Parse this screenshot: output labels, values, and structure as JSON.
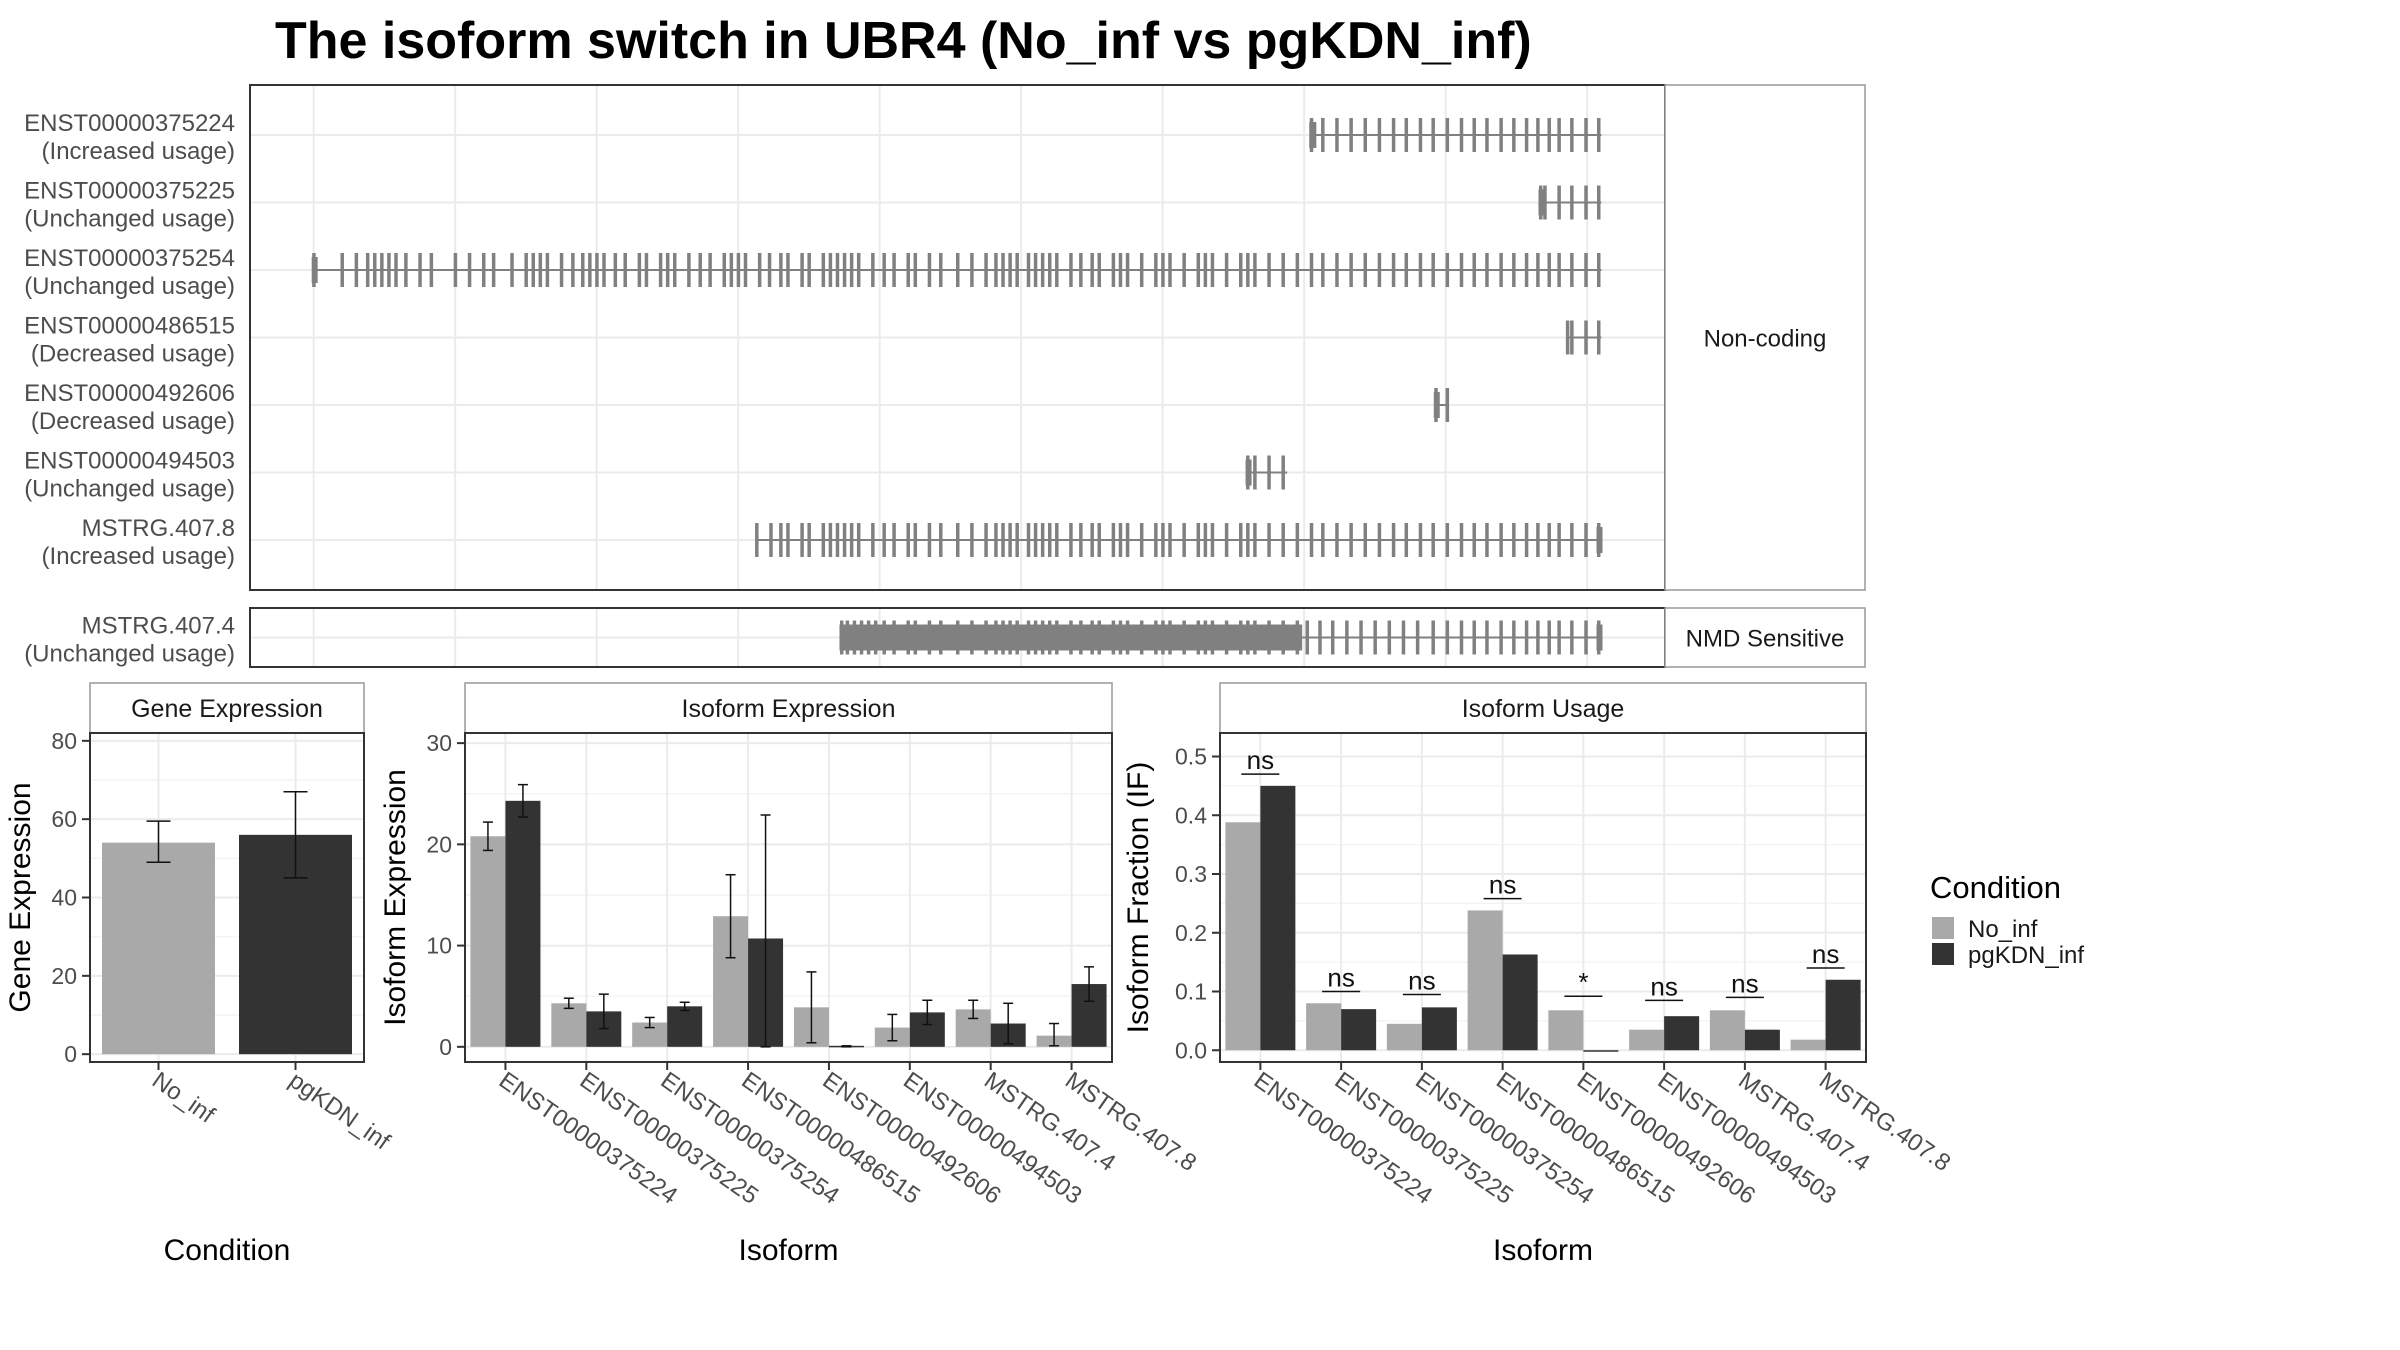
{
  "title": "The isoform switch in UBR4 (No_inf vs pgKDN_inf)",
  "colors": {
    "no_inf": "#a9a9a9",
    "pgkdn_inf": "#333333",
    "transcript": "#808080",
    "panel_border": "#333333",
    "strip_fill": "#ffffff",
    "grid": "#ebebeb"
  },
  "transcript_panel": {
    "groups": [
      {
        "label": "Non-coding",
        "transcripts": [
          {
            "id": "ENST00000375224",
            "usage": "(Increased usage)",
            "span": [
              0.75,
              0.955
            ],
            "exons": [
              0.75,
              0.758,
              0.768,
              0.778,
              0.788,
              0.798,
              0.808,
              0.817,
              0.827,
              0.836,
              0.846,
              0.856,
              0.865,
              0.874,
              0.884,
              0.893,
              0.902,
              0.91,
              0.918,
              0.925,
              0.934,
              0.944,
              0.953
            ],
            "thick": [
              0.75,
              0.755
            ]
          },
          {
            "id": "ENST00000375225",
            "usage": "(Unchanged usage)",
            "span": [
              0.912,
              0.955
            ],
            "exons": [
              0.912,
              0.915,
              0.925,
              0.934,
              0.944,
              0.953
            ],
            "thick": [
              0.912,
              0.916
            ]
          },
          {
            "id": "ENST00000375254",
            "usage": "(Unchanged usage)",
            "span": [
              0.045,
              0.955
            ],
            "exons": [
              0.045,
              0.065,
              0.075,
              0.083,
              0.088,
              0.093,
              0.098,
              0.103,
              0.11,
              0.12,
              0.128,
              0.145,
              0.155,
              0.165,
              0.172,
              0.185,
              0.195,
              0.2,
              0.205,
              0.21,
              0.22,
              0.228,
              0.235,
              0.24,
              0.245,
              0.25,
              0.258,
              0.265,
              0.275,
              0.28,
              0.29,
              0.295,
              0.3,
              0.31,
              0.318,
              0.325,
              0.335,
              0.34,
              0.345,
              0.35,
              0.36,
              0.367,
              0.375,
              0.38,
              0.39,
              0.395,
              0.405,
              0.41,
              0.415,
              0.42,
              0.425,
              0.43,
              0.44,
              0.448,
              0.455,
              0.465,
              0.47,
              0.48,
              0.488,
              0.5,
              0.51,
              0.52,
              0.527,
              0.532,
              0.537,
              0.542,
              0.55,
              0.555,
              0.56,
              0.565,
              0.57,
              0.58,
              0.587,
              0.595,
              0.6,
              0.61,
              0.615,
              0.62,
              0.63,
              0.64,
              0.645,
              0.65,
              0.66,
              0.67,
              0.675,
              0.68,
              0.69,
              0.7,
              0.705,
              0.71,
              0.72,
              0.73,
              0.74,
              0.75,
              0.758,
              0.768,
              0.778,
              0.788,
              0.798,
              0.808,
              0.817,
              0.827,
              0.836,
              0.846,
              0.856,
              0.865,
              0.874,
              0.884,
              0.893,
              0.902,
              0.91,
              0.918,
              0.925,
              0.934,
              0.944,
              0.953
            ],
            "thick": [
              0.045,
              0.047
            ]
          },
          {
            "id": "ENST00000486515",
            "usage": "(Decreased usage)",
            "span": [
              0.931,
              0.955
            ],
            "exons": [
              0.931,
              0.934,
              0.944,
              0.953
            ],
            "thick": []
          },
          {
            "id": "ENST00000492606",
            "usage": "(Decreased usage)",
            "span": [
              0.838,
              0.847
            ],
            "exons": [
              0.838,
              0.846
            ],
            "thick": [
              0.838,
              0.841
            ]
          },
          {
            "id": "ENST00000494503",
            "usage": "(Unchanged usage)",
            "span": [
              0.705,
              0.733
            ],
            "exons": [
              0.705,
              0.71,
              0.72,
              0.73
            ],
            "thick": [
              0.705,
              0.708
            ]
          },
          {
            "id": "MSTRG.407.8",
            "usage": "(Increased usage)",
            "span": [
              0.358,
              0.955
            ],
            "exons": [
              0.358,
              0.368,
              0.375,
              0.38,
              0.39,
              0.395,
              0.405,
              0.41,
              0.415,
              0.42,
              0.425,
              0.43,
              0.44,
              0.448,
              0.455,
              0.465,
              0.47,
              0.48,
              0.488,
              0.5,
              0.51,
              0.52,
              0.527,
              0.532,
              0.537,
              0.542,
              0.55,
              0.555,
              0.56,
              0.565,
              0.57,
              0.58,
              0.587,
              0.595,
              0.6,
              0.61,
              0.615,
              0.62,
              0.63,
              0.64,
              0.645,
              0.65,
              0.66,
              0.67,
              0.675,
              0.68,
              0.69,
              0.7,
              0.705,
              0.71,
              0.72,
              0.73,
              0.74,
              0.75,
              0.758,
              0.768,
              0.778,
              0.788,
              0.798,
              0.808,
              0.817,
              0.827,
              0.836,
              0.846,
              0.856,
              0.865,
              0.874,
              0.884,
              0.893,
              0.902,
              0.91,
              0.918,
              0.925,
              0.934,
              0.944,
              0.953
            ],
            "thick": [
              0.953,
              0.955
            ]
          }
        ]
      },
      {
        "label": "NMD Sensitive",
        "transcripts": [
          {
            "id": "MSTRG.407.4",
            "usage": "(Unchanged usage)",
            "span": [
              0.418,
              0.955
            ],
            "exons": [
              0.418,
              0.422,
              0.427,
              0.432,
              0.437,
              0.442,
              0.448,
              0.455,
              0.465,
              0.47,
              0.48,
              0.488,
              0.5,
              0.51,
              0.52,
              0.527,
              0.532,
              0.537,
              0.542,
              0.55,
              0.555,
              0.56,
              0.565,
              0.57,
              0.58,
              0.587,
              0.595,
              0.6,
              0.61,
              0.615,
              0.62,
              0.63,
              0.64,
              0.645,
              0.65,
              0.66,
              0.67,
              0.675,
              0.68,
              0.69,
              0.7,
              0.705,
              0.71,
              0.72,
              0.73,
              0.74,
              0.747,
              0.756,
              0.765,
              0.775,
              0.785,
              0.795,
              0.805,
              0.815,
              0.825,
              0.836,
              0.846,
              0.856,
              0.865,
              0.874,
              0.884,
              0.893,
              0.902,
              0.91,
              0.918,
              0.925,
              0.934,
              0.944,
              0.953
            ],
            "thick": [
              0.418,
              0.745,
              0.953,
              0.955
            ]
          }
        ]
      }
    ]
  },
  "chart_data": [
    {
      "type": "bar",
      "strip": "Gene Expression",
      "xlabel": "Condition",
      "ylabel": "Gene Expression",
      "ylim": [
        -2,
        82
      ],
      "yticks": [
        0,
        20,
        40,
        60,
        80
      ],
      "categories": [
        "No_inf",
        "pgKDN_inf"
      ],
      "series": [
        {
          "name": "No_inf",
          "values": [
            54,
            null
          ],
          "err_low": [
            49,
            null
          ],
          "err_high": [
            59.5,
            null
          ]
        },
        {
          "name": "pgKDN_inf",
          "values": [
            null,
            56
          ],
          "err_low": [
            null,
            45
          ],
          "err_high": [
            null,
            67
          ]
        }
      ],
      "grid": true
    },
    {
      "type": "bar",
      "strip": "Isoform Expression",
      "xlabel": "Isoform",
      "ylabel": "Isoform Expression",
      "ylim": [
        -1.5,
        31
      ],
      "yticks": [
        0,
        10,
        20,
        30
      ],
      "categories": [
        "ENST00000375224",
        "ENST00000375225",
        "ENST00000375254",
        "ENST00000486515",
        "ENST00000492606",
        "ENST00000494503",
        "MSTRG.407.4",
        "MSTRG.407.8"
      ],
      "series": [
        {
          "name": "No_inf",
          "values": [
            20.8,
            4.3,
            2.4,
            12.9,
            3.9,
            1.9,
            3.7,
            1.1
          ],
          "err_low": [
            19.4,
            3.8,
            1.9,
            8.8,
            0.4,
            0.6,
            2.8,
            0.1
          ],
          "err_high": [
            22.2,
            4.8,
            2.9,
            17.0,
            7.4,
            3.2,
            4.6,
            2.3
          ]
        },
        {
          "name": "pgKDN_inf",
          "values": [
            24.3,
            3.5,
            4.0,
            10.7,
            0.1,
            3.4,
            2.3,
            6.2
          ],
          "err_low": [
            22.7,
            1.8,
            3.6,
            0.0,
            0.0,
            2.2,
            0.3,
            4.5
          ],
          "err_high": [
            25.9,
            5.2,
            4.4,
            22.9,
            0.1,
            4.6,
            4.3,
            7.9
          ]
        }
      ],
      "grid": true
    },
    {
      "type": "bar",
      "strip": "Isoform Usage",
      "xlabel": "Isoform",
      "ylabel": "Isoform Fraction (IF)",
      "ylim": [
        -0.02,
        0.54
      ],
      "yticks": [
        0.0,
        0.1,
        0.2,
        0.3,
        0.4,
        0.5
      ],
      "categories": [
        "ENST00000375224",
        "ENST00000375225",
        "ENST00000375254",
        "ENST00000486515",
        "ENST00000492606",
        "ENST00000494503",
        "MSTRG.407.4",
        "MSTRG.407.8"
      ],
      "series": [
        {
          "name": "No_inf",
          "values": [
            0.388,
            0.08,
            0.045,
            0.238,
            0.068,
            0.035,
            0.068,
            0.018
          ]
        },
        {
          "name": "pgKDN_inf",
          "values": [
            0.45,
            0.07,
            0.073,
            0.163,
            0.0,
            0.058,
            0.035,
            0.12
          ]
        }
      ],
      "significance": [
        "ns",
        "ns",
        "ns",
        "ns",
        "*",
        "ns",
        "ns",
        "ns"
      ],
      "sig_y": [
        0.47,
        0.1,
        0.095,
        0.258,
        0.092,
        0.085,
        0.09,
        0.14
      ],
      "grid": true
    }
  ],
  "legend": {
    "title": "Condition",
    "items": [
      "No_inf",
      "pgKDN_inf"
    ]
  }
}
